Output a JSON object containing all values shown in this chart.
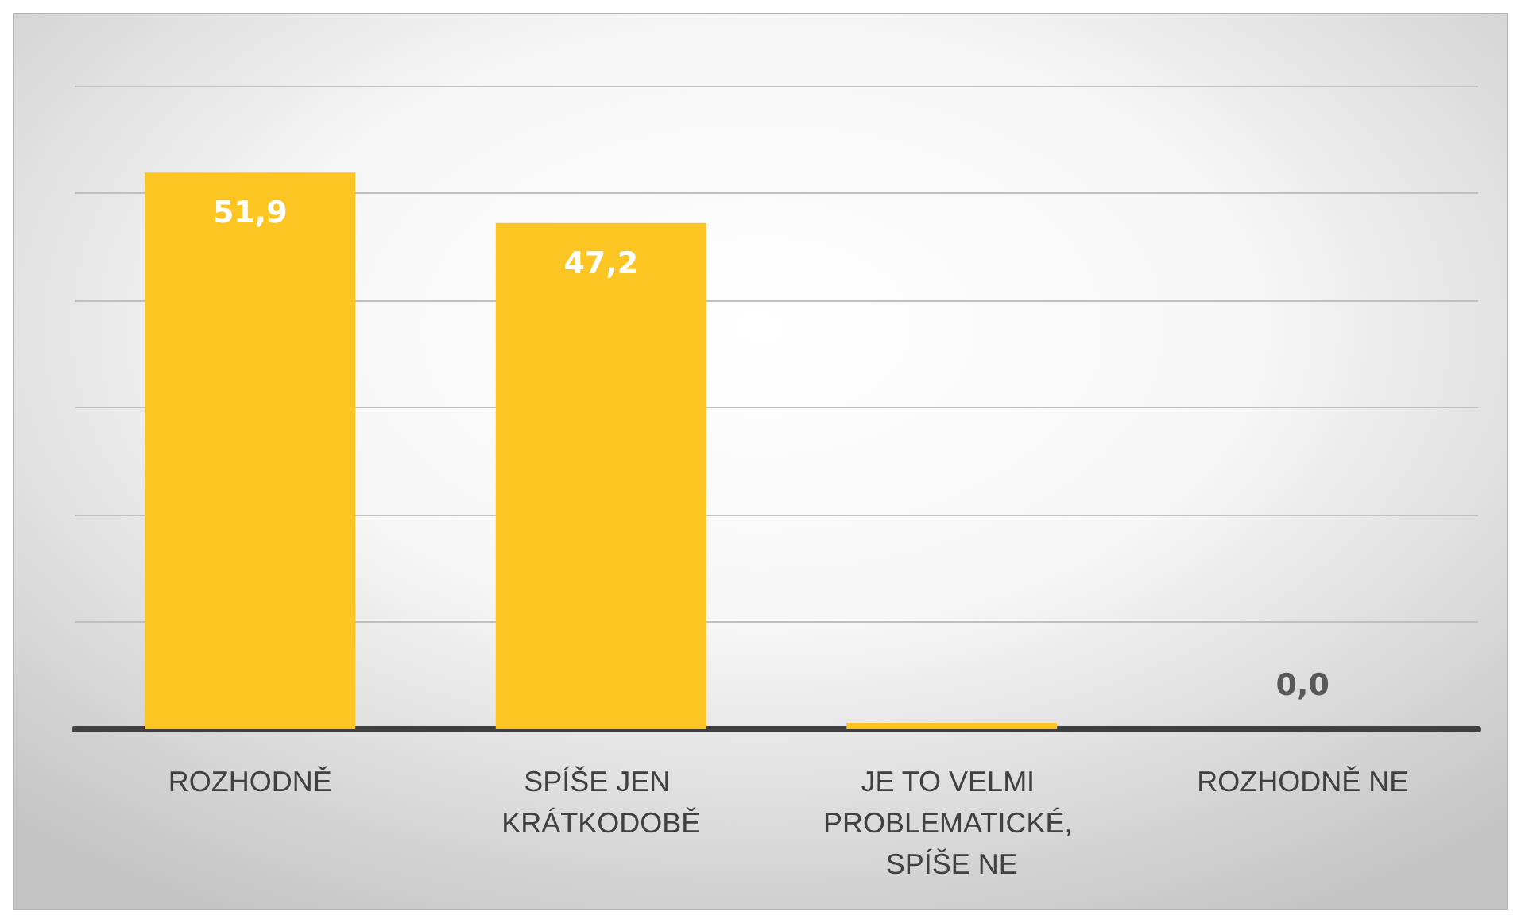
{
  "chart_data": {
    "type": "bar",
    "categories": [
      "ROZHODNĚ",
      "SPÍŠE JEN KRÁTKODOBĚ",
      "JE TO VELMI PROBLEMATICKÉ, SPÍŠE NE",
      "ROZHODNĚ NE"
    ],
    "values": [
      51.9,
      47.2,
      0.6,
      0
    ],
    "value_labels": [
      "51,9",
      "47,2",
      null,
      "0,0"
    ],
    "color": "#fdc521",
    "ylim": [
      0,
      60
    ],
    "yticks": [
      {
        "value": 0,
        "label": null
      },
      {
        "value": 10,
        "label": null
      },
      {
        "value": 20,
        "label": null
      },
      {
        "value": 30,
        "label": null
      },
      {
        "value": 40,
        "label": null
      },
      {
        "value": 50,
        "label": null
      },
      {
        "value": 60,
        "label": null
      }
    ],
    "grid": "y"
  }
}
